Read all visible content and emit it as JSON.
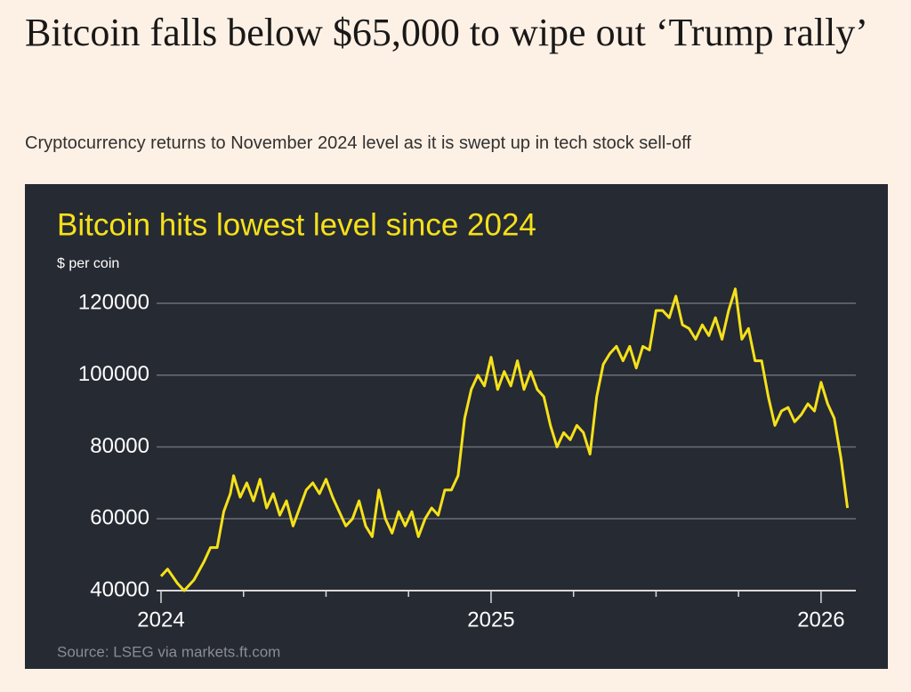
{
  "header": {
    "title": "Bitcoin falls below $65,000 to wipe out ‘Trump rally’",
    "subtitle": "Cryptocurrency returns to November 2024 level as it is swept up in tech stock sell-off"
  },
  "chart_data": {
    "type": "line",
    "title": "Bitcoin hits lowest level since 2024",
    "y_label": "$ per coin",
    "source": "Source: LSEG via markets.ft.com",
    "color": "#f5e11a",
    "grid": true,
    "x": [
      2024.0,
      2024.02,
      2024.05,
      2024.07,
      2024.1,
      2024.13,
      2024.15,
      2024.17,
      2024.19,
      2024.21,
      2024.22,
      2024.24,
      2024.26,
      2024.28,
      2024.3,
      2024.32,
      2024.34,
      2024.36,
      2024.38,
      2024.4,
      2024.42,
      2024.44,
      2024.46,
      2024.48,
      2024.5,
      2024.52,
      2024.54,
      2024.56,
      2024.58,
      2024.6,
      2024.62,
      2024.64,
      2024.66,
      2024.68,
      2024.7,
      2024.72,
      2024.74,
      2024.76,
      2024.78,
      2024.8,
      2024.82,
      2024.84,
      2024.86,
      2024.88,
      2024.9,
      2024.92,
      2024.94,
      2024.96,
      2024.98,
      2025.0,
      2025.02,
      2025.04,
      2025.06,
      2025.08,
      2025.1,
      2025.12,
      2025.14,
      2025.16,
      2025.18,
      2025.2,
      2025.22,
      2025.24,
      2025.26,
      2025.28,
      2025.3,
      2025.32,
      2025.34,
      2025.36,
      2025.38,
      2025.4,
      2025.42,
      2025.44,
      2025.46,
      2025.48,
      2025.5,
      2025.52,
      2025.54,
      2025.56,
      2025.58,
      2025.6,
      2025.62,
      2025.64,
      2025.66,
      2025.68,
      2025.7,
      2025.72,
      2025.74,
      2025.76,
      2025.78,
      2025.8,
      2025.82,
      2025.84,
      2025.86,
      2025.88,
      2025.9,
      2025.92,
      2025.94,
      2025.96,
      2025.98,
      2026.0,
      2026.02,
      2026.04,
      2026.06,
      2026.08
    ],
    "values": [
      44000,
      46000,
      42000,
      40000,
      43000,
      48000,
      52000,
      52000,
      62000,
      67000,
      72000,
      66000,
      70000,
      65000,
      71000,
      63000,
      67000,
      61000,
      65000,
      58000,
      63000,
      68000,
      70000,
      67000,
      71000,
      66000,
      62000,
      58000,
      60000,
      65000,
      58000,
      55000,
      68000,
      60000,
      56000,
      62000,
      58000,
      62000,
      55000,
      60000,
      63000,
      61000,
      68000,
      68000,
      72000,
      88000,
      96000,
      100000,
      97000,
      105000,
      96000,
      101000,
      97000,
      104000,
      96000,
      101000,
      96000,
      94000,
      86000,
      80000,
      84000,
      82000,
      86000,
      84000,
      78000,
      94000,
      103000,
      106000,
      108000,
      104000,
      108000,
      102000,
      108000,
      107000,
      118000,
      118000,
      116000,
      122000,
      114000,
      113000,
      110000,
      114000,
      111000,
      116000,
      110000,
      118000,
      124000,
      110000,
      113000,
      104000,
      104000,
      94000,
      86000,
      90000,
      91000,
      87000,
      89000,
      92000,
      90000,
      98000,
      92000,
      88000,
      77000,
      63000
    ],
    "xlim": [
      2024,
      2026.1
    ],
    "xticks": [
      2024,
      2025,
      2026
    ],
    "xminorticks": [
      2024.25,
      2024.5,
      2024.75,
      2025.25,
      2025.5,
      2025.75
    ],
    "ylim": [
      40000,
      120000
    ],
    "yticks": [
      40000,
      60000,
      80000,
      100000,
      120000
    ]
  }
}
